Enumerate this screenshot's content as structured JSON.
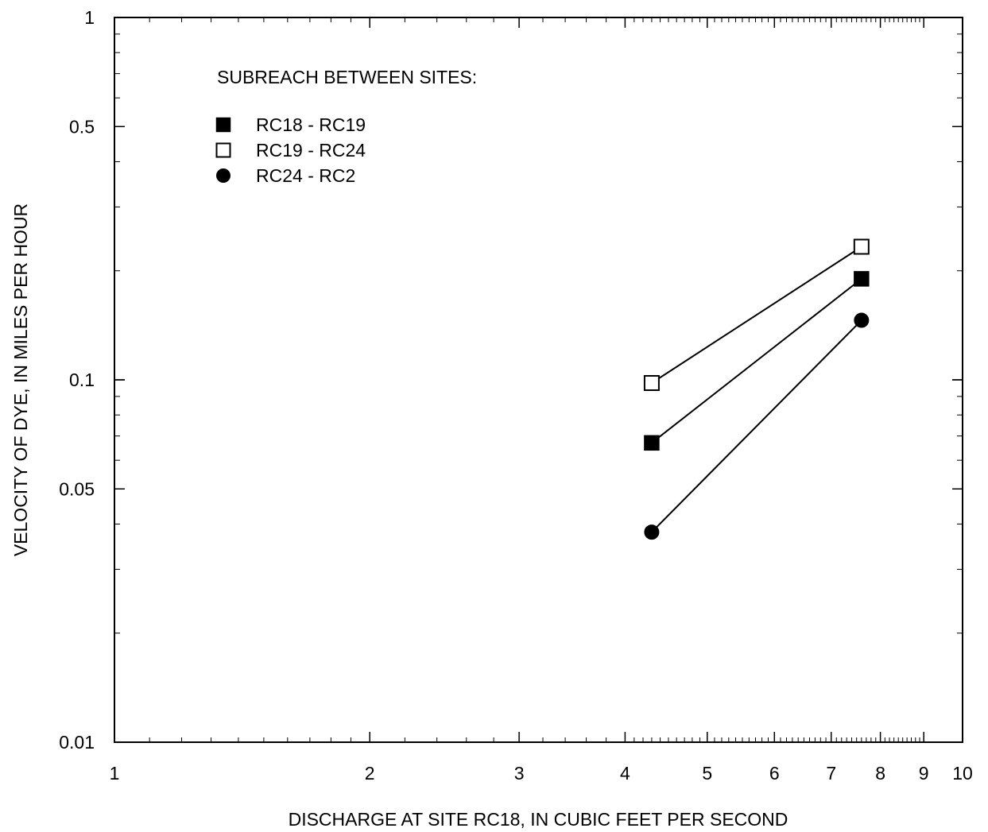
{
  "chart_data": {
    "type": "line",
    "xscale": "log",
    "yscale": "log",
    "xlim": [
      1,
      10
    ],
    "ylim": [
      0.01,
      1
    ],
    "xlabel": "DISCHARGE AT SITE RC18, IN CUBIC FEET PER SECOND",
    "ylabel": "VELOCITY OF DYE, IN MILES PER HOUR",
    "x_tick_labels": [
      "1",
      "2",
      "3",
      "4",
      "5",
      "6",
      "7",
      "8",
      "9",
      "10"
    ],
    "x_tick_values": [
      1,
      2,
      3,
      4,
      5,
      6,
      7,
      8,
      9,
      10
    ],
    "y_tick_labels": [
      "0.01",
      "0.05",
      "0.1",
      "0.5",
      "1"
    ],
    "y_tick_values": [
      0.01,
      0.05,
      0.1,
      0.5,
      1
    ],
    "grid": false,
    "legend": {
      "title": "SUBREACH BETWEEN SITES:",
      "placement": "top-left"
    },
    "series": [
      {
        "name": "RC18 - RC19",
        "marker": "filled-square",
        "x": [
          4.3,
          7.6
        ],
        "y": [
          0.067,
          0.19
        ]
      },
      {
        "name": "RC19 - RC24",
        "marker": "open-square",
        "x": [
          4.3,
          7.6
        ],
        "y": [
          0.098,
          0.233
        ]
      },
      {
        "name": "RC24 - RC2",
        "marker": "filled-circle",
        "x": [
          4.3,
          7.6
        ],
        "y": [
          0.038,
          0.146
        ]
      }
    ]
  }
}
